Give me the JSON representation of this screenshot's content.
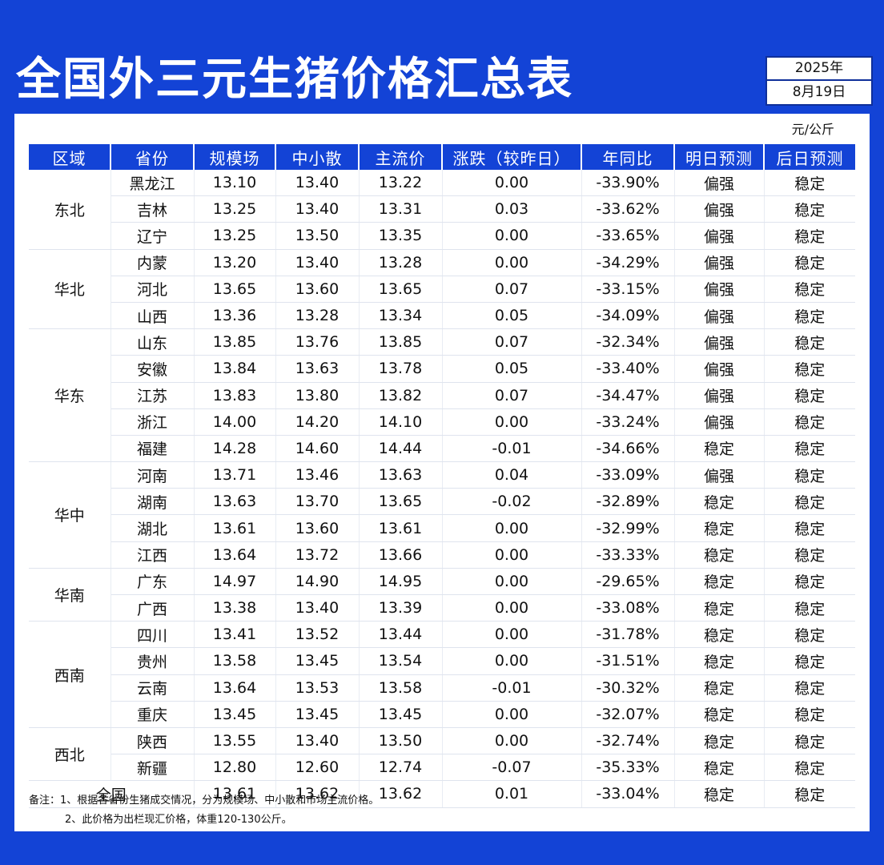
{
  "title": "全国外三元生猪价格汇总表",
  "date": {
    "year": "2025年",
    "day": "8月19日"
  },
  "unit": "元/公斤",
  "colors": {
    "up": "#e3312c",
    "down": "#1dae3d",
    "header_bg": "#1343d6"
  },
  "headers": [
    "区域",
    "省份",
    "规模场",
    "中小散",
    "主流价",
    "涨跌（较昨日）",
    "年同比",
    "明日预测",
    "后日预测"
  ],
  "regions": [
    {
      "name": "东北",
      "rows": [
        {
          "province": "黑龙江",
          "scale": "13.10",
          "small": "13.40",
          "main": "13.22",
          "change": "0.00",
          "yoy": "-33.90%",
          "tomorrow": "偏强",
          "after": "稳定"
        },
        {
          "province": "吉林",
          "scale": "13.25",
          "small": "13.40",
          "main": "13.31",
          "change": "0.03",
          "yoy": "-33.62%",
          "tomorrow": "偏强",
          "after": "稳定"
        },
        {
          "province": "辽宁",
          "scale": "13.25",
          "small": "13.50",
          "main": "13.35",
          "change": "0.00",
          "yoy": "-33.65%",
          "tomorrow": "偏强",
          "after": "稳定"
        }
      ]
    },
    {
      "name": "华北",
      "rows": [
        {
          "province": "内蒙",
          "scale": "13.20",
          "small": "13.40",
          "main": "13.28",
          "change": "0.00",
          "yoy": "-34.29%",
          "tomorrow": "偏强",
          "after": "稳定"
        },
        {
          "province": "河北",
          "scale": "13.65",
          "small": "13.60",
          "main": "13.65",
          "change": "0.07",
          "yoy": "-33.15%",
          "tomorrow": "偏强",
          "after": "稳定"
        },
        {
          "province": "山西",
          "scale": "13.36",
          "small": "13.28",
          "main": "13.34",
          "change": "0.05",
          "yoy": "-34.09%",
          "tomorrow": "偏强",
          "after": "稳定"
        }
      ]
    },
    {
      "name": "华东",
      "rows": [
        {
          "province": "山东",
          "scale": "13.85",
          "small": "13.76",
          "main": "13.85",
          "change": "0.07",
          "yoy": "-32.34%",
          "tomorrow": "偏强",
          "after": "稳定"
        },
        {
          "province": "安徽",
          "scale": "13.84",
          "small": "13.63",
          "main": "13.78",
          "change": "0.05",
          "yoy": "-33.40%",
          "tomorrow": "偏强",
          "after": "稳定"
        },
        {
          "province": "江苏",
          "scale": "13.83",
          "small": "13.80",
          "main": "13.82",
          "change": "0.07",
          "yoy": "-34.47%",
          "tomorrow": "偏强",
          "after": "稳定"
        },
        {
          "province": "浙江",
          "scale": "14.00",
          "small": "14.20",
          "main": "14.10",
          "change": "0.00",
          "yoy": "-33.24%",
          "tomorrow": "偏强",
          "after": "稳定"
        },
        {
          "province": "福建",
          "scale": "14.28",
          "small": "14.60",
          "main": "14.44",
          "change": "-0.01",
          "yoy": "-34.66%",
          "tomorrow": "稳定",
          "after": "稳定"
        }
      ]
    },
    {
      "name": "华中",
      "rows": [
        {
          "province": "河南",
          "scale": "13.71",
          "small": "13.46",
          "main": "13.63",
          "change": "0.04",
          "yoy": "-33.09%",
          "tomorrow": "偏强",
          "after": "稳定"
        },
        {
          "province": "湖南",
          "scale": "13.63",
          "small": "13.70",
          "main": "13.65",
          "change": "-0.02",
          "yoy": "-32.89%",
          "tomorrow": "稳定",
          "after": "稳定"
        },
        {
          "province": "湖北",
          "scale": "13.61",
          "small": "13.60",
          "main": "13.61",
          "change": "0.00",
          "yoy": "-32.99%",
          "tomorrow": "稳定",
          "after": "稳定"
        },
        {
          "province": "江西",
          "scale": "13.64",
          "small": "13.72",
          "main": "13.66",
          "change": "0.00",
          "yoy": "-33.33%",
          "tomorrow": "稳定",
          "after": "稳定"
        }
      ]
    },
    {
      "name": "华南",
      "rows": [
        {
          "province": "广东",
          "scale": "14.97",
          "small": "14.90",
          "main": "14.95",
          "change": "0.00",
          "yoy": "-29.65%",
          "tomorrow": "稳定",
          "after": "稳定"
        },
        {
          "province": "广西",
          "scale": "13.38",
          "small": "13.40",
          "main": "13.39",
          "change": "0.00",
          "yoy": "-33.08%",
          "tomorrow": "稳定",
          "after": "稳定"
        }
      ]
    },
    {
      "name": "西南",
      "rows": [
        {
          "province": "四川",
          "scale": "13.41",
          "small": "13.52",
          "main": "13.44",
          "change": "0.00",
          "yoy": "-31.78%",
          "tomorrow": "稳定",
          "after": "稳定"
        },
        {
          "province": "贵州",
          "scale": "13.58",
          "small": "13.45",
          "main": "13.54",
          "change": "0.00",
          "yoy": "-31.51%",
          "tomorrow": "稳定",
          "after": "稳定"
        },
        {
          "province": "云南",
          "scale": "13.64",
          "small": "13.53",
          "main": "13.58",
          "change": "-0.01",
          "yoy": "-30.32%",
          "tomorrow": "稳定",
          "after": "稳定"
        },
        {
          "province": "重庆",
          "scale": "13.45",
          "small": "13.45",
          "main": "13.45",
          "change": "0.00",
          "yoy": "-32.07%",
          "tomorrow": "稳定",
          "after": "稳定"
        }
      ]
    },
    {
      "name": "西北",
      "rows": [
        {
          "province": "陕西",
          "scale": "13.55",
          "small": "13.40",
          "main": "13.50",
          "change": "0.00",
          "yoy": "-32.74%",
          "tomorrow": "稳定",
          "after": "稳定"
        },
        {
          "province": "新疆",
          "scale": "12.80",
          "small": "12.60",
          "main": "12.74",
          "change": "-0.07",
          "yoy": "-35.33%",
          "tomorrow": "稳定",
          "after": "稳定"
        }
      ]
    }
  ],
  "national": {
    "label": "全国",
    "scale": "13.61",
    "small": "13.62",
    "main": "13.62",
    "change": "0.01",
    "yoy": "-33.04%",
    "tomorrow": "稳定",
    "after": "稳定"
  },
  "notes": [
    "备注：1、根据各省份生猪成交情况，分为规模场、中小散和市场主流价格。",
    "2、此价格为出栏现汇价格，体重120-130公斤。"
  ]
}
